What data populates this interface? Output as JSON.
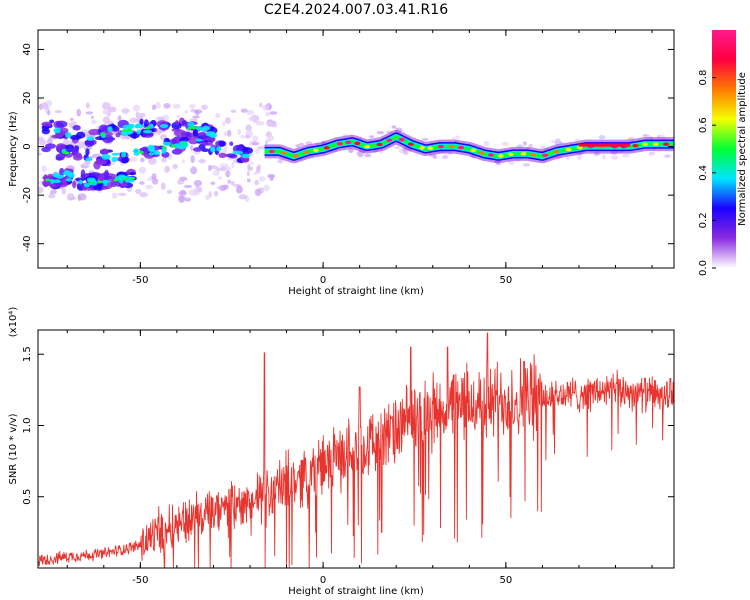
{
  "title": "C2E4.2024.007.03.41.R16",
  "chart_data": [
    {
      "type": "heatmap",
      "xlabel": "Height of straight line (km)",
      "ylabel": "Frequency (Hz)",
      "xlim": [
        -78,
        96
      ],
      "ylim": [
        -50,
        48
      ],
      "xticks": [
        -50,
        0,
        50
      ],
      "xtick_labels": [
        "-50",
        "0",
        "50"
      ],
      "yticks": [
        -40,
        -20,
        0,
        20,
        40
      ],
      "ytick_labels": [
        "-40",
        "-20",
        "0",
        "20",
        "40"
      ],
      "colorbar": {
        "label": "Normalized spectral amplitude",
        "range": [
          0,
          1
        ],
        "ticks": [
          0.0,
          0.2,
          0.4,
          0.6,
          0.8
        ],
        "tick_labels": [
          "0.0",
          "0.2",
          "0.4",
          "0.6",
          "0.8"
        ],
        "colors": [
          "#ffffff",
          "#8a2be2",
          "#1a00ff",
          "#00e5ff",
          "#00ff33",
          "#f5ff00",
          "#ff7a00",
          "#ff0040",
          "#ff1a8c"
        ]
      },
      "ridge": {
        "x": [
          -16,
          -12,
          -8,
          -4,
          0,
          4,
          8,
          12,
          16,
          20,
          24,
          28,
          32,
          36,
          40,
          44,
          48,
          52,
          56,
          60,
          64,
          68,
          72,
          76,
          80,
          84,
          88,
          92,
          96
        ],
        "y": [
          -2,
          -2,
          -4,
          -2,
          -1,
          1,
          2,
          0,
          1,
          4,
          1,
          -1,
          0,
          0,
          -1,
          -3,
          -4,
          -3,
          -3,
          -4,
          -2,
          -1,
          0,
          0,
          0,
          0,
          1,
          1,
          1
        ]
      },
      "scatter_blobs": {
        "upper_band": {
          "x": [
            -76,
            -70,
            -64,
            -58,
            -52,
            -46,
            -40,
            -34,
            -30
          ],
          "y": [
            8,
            6,
            4,
            6,
            7,
            8,
            7,
            8,
            5
          ]
        },
        "mid_band": {
          "x": [
            -76,
            -72,
            -66,
            -60,
            -54,
            -48,
            -42,
            -36,
            -30,
            -24,
            -20
          ],
          "y": [
            -2,
            -2,
            -4,
            -5,
            -3,
            -2,
            0,
            2,
            0,
            -2,
            -4
          ]
        },
        "lower_band": {
          "x": [
            -76,
            -70,
            -64,
            -58,
            -52
          ],
          "y": [
            -14,
            -12,
            -15,
            -14,
            -13
          ]
        }
      }
    },
    {
      "type": "line",
      "xlabel": "Height of straight line (km)",
      "ylabel": "SNR (10 * v/v)",
      "multiplier": "(x10⁴)",
      "xlim": [
        -78,
        96
      ],
      "ylim": [
        0,
        1.67
      ],
      "xticks": [
        -50,
        0,
        50
      ],
      "xtick_labels": [
        "-50",
        "0",
        "50"
      ],
      "yticks": [
        0.5,
        1.0,
        1.5
      ],
      "ytick_labels": [
        "0.5",
        "1.0",
        "1.5"
      ],
      "color": "#e8342e",
      "trend": {
        "x": [
          -78,
          -70,
          -60,
          -50,
          -45,
          -40,
          -30,
          -20,
          -16,
          -10,
          -5,
          0,
          10,
          20,
          25,
          30,
          40,
          50,
          60,
          70,
          80,
          90,
          96
        ],
        "y": [
          0.05,
          0.08,
          0.1,
          0.16,
          0.25,
          0.32,
          0.38,
          0.45,
          0.5,
          0.6,
          0.65,
          0.72,
          0.85,
          0.95,
          1.05,
          1.1,
          1.15,
          1.18,
          1.2,
          1.22,
          1.25,
          1.22,
          1.2
        ]
      },
      "spikes": [
        {
          "x": -16,
          "y": 1.51
        },
        {
          "x": 10,
          "y": 1.27
        },
        {
          "x": 16,
          "y": 0.25
        },
        {
          "x": 24,
          "y": 1.55
        },
        {
          "x": 34,
          "y": 1.55
        },
        {
          "x": 45,
          "y": 1.65
        },
        {
          "x": 55,
          "y": 1.45
        },
        {
          "x": 95,
          "y": 1.33
        }
      ]
    }
  ]
}
